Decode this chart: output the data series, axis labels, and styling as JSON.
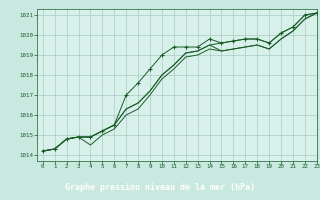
{
  "title": "Graphe pression niveau de la mer (hPa)",
  "xlim": [
    -0.5,
    23
  ],
  "ylim": [
    1013.7,
    1021.3
  ],
  "xticks": [
    0,
    1,
    2,
    3,
    4,
    5,
    6,
    7,
    8,
    9,
    10,
    11,
    12,
    13,
    14,
    15,
    16,
    17,
    18,
    19,
    20,
    21,
    22,
    23
  ],
  "yticks": [
    1014,
    1015,
    1016,
    1017,
    1018,
    1019,
    1020,
    1021
  ],
  "bg_color": "#c8e8e0",
  "plot_bg_color": "#d8f0ea",
  "footer_bg": "#2d6b3a",
  "grid_color": "#a8ccc4",
  "line_color": "#1a5c28",
  "title_color": "#ffffff",
  "tick_color": "#1a5c28",
  "series": [
    [
      1014.2,
      1014.3,
      1014.8,
      1014.9,
      1014.9,
      1015.2,
      1015.5,
      1017.0,
      1017.6,
      1018.3,
      1019.0,
      1019.4,
      1019.4,
      1019.4,
      1019.8,
      1019.6,
      1019.7,
      1019.8,
      1019.8,
      1019.6,
      1020.1,
      1020.4,
      1021.0,
      1021.1
    ],
    [
      1014.2,
      1014.3,
      1014.8,
      1014.9,
      1014.9,
      1015.2,
      1015.5,
      1016.3,
      1016.6,
      1017.2,
      1018.0,
      1018.5,
      1019.1,
      1019.2,
      1019.5,
      1019.6,
      1019.7,
      1019.8,
      1019.8,
      1019.6,
      1020.1,
      1020.4,
      1021.0,
      1021.1
    ],
    [
      1014.2,
      1014.3,
      1014.8,
      1014.9,
      1014.9,
      1015.2,
      1015.5,
      1016.3,
      1016.6,
      1017.2,
      1018.0,
      1018.5,
      1019.1,
      1019.2,
      1019.5,
      1019.2,
      1019.3,
      1019.4,
      1019.5,
      1019.3,
      1019.8,
      1020.2,
      1020.8,
      1021.1
    ],
    [
      1014.2,
      1014.3,
      1014.8,
      1014.9,
      1014.5,
      1015.0,
      1015.3,
      1016.0,
      1016.3,
      1017.0,
      1017.8,
      1018.3,
      1018.9,
      1019.0,
      1019.3,
      1019.2,
      1019.3,
      1019.4,
      1019.5,
      1019.3,
      1019.8,
      1020.2,
      1020.8,
      1021.1
    ]
  ],
  "marker_series_idx": 0,
  "figsize": [
    3.2,
    2.0
  ],
  "dpi": 100
}
